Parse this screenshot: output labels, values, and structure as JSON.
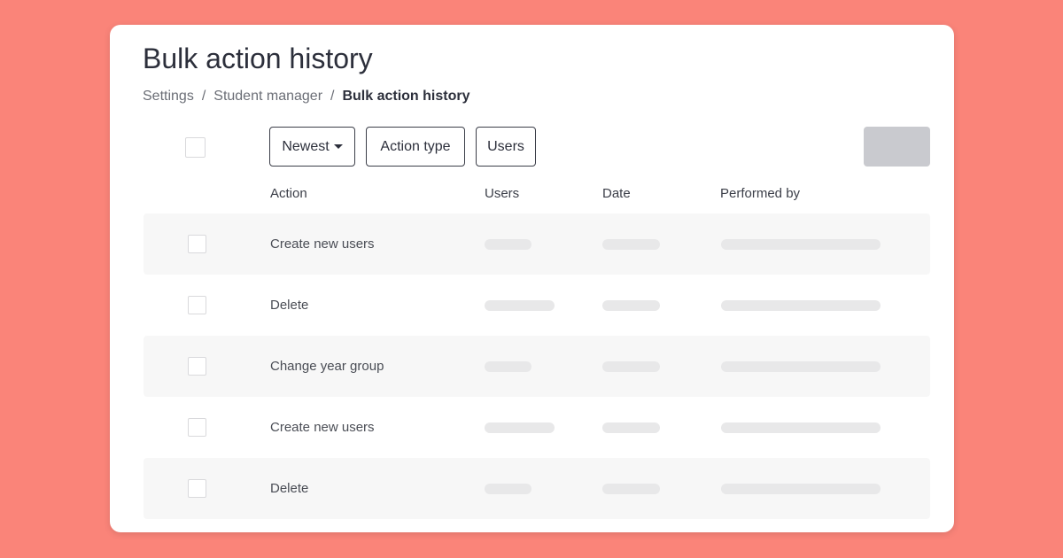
{
  "page": {
    "title": "Bulk action history"
  },
  "breadcrumb": [
    {
      "label": "Settings"
    },
    {
      "label": "Student manager"
    },
    {
      "label": "Bulk action history"
    }
  ],
  "breadcrumb_separator": "/",
  "toolbar": {
    "sort_label": "Newest",
    "action_type_label": "Action type",
    "users_label": "Users"
  },
  "table": {
    "columns": [
      "Action",
      "Users",
      "Date",
      "Performed by"
    ],
    "rows": [
      {
        "action": "Create new users",
        "users_placeholder": "short"
      },
      {
        "action": "Delete",
        "users_placeholder": "long"
      },
      {
        "action": "Change year group",
        "users_placeholder": "short"
      },
      {
        "action": "Create new users",
        "users_placeholder": "long"
      },
      {
        "action": "Delete",
        "users_placeholder": "short"
      }
    ]
  },
  "colors": {
    "background": "#fa8479",
    "card": "#ffffff",
    "row_alt": "#f7f7f7",
    "placeholder": "#e8e8e9",
    "disabled_button": "#c9cacf"
  }
}
